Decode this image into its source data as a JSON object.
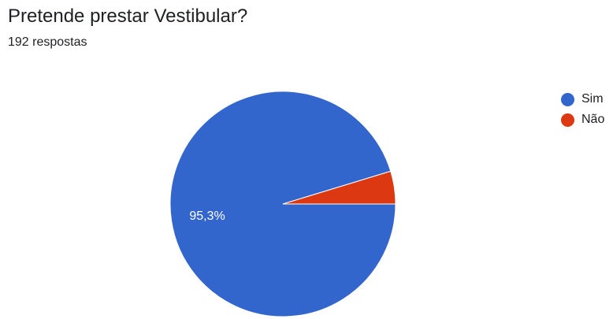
{
  "header": {
    "title": "Pretende prestar Vestibular?",
    "responses": "192 respostas"
  },
  "colors": {
    "sim": "#3366cc",
    "nao": "#dc3912",
    "slice_label": "#ffffff"
  },
  "chart_data": {
    "type": "pie",
    "title": "Pretende prestar Vestibular?",
    "categories": [
      "Sim",
      "Não"
    ],
    "values": [
      95.3,
      4.7
    ],
    "data_labels": [
      "95,3%",
      ""
    ],
    "legend_position": "right",
    "start_angle_deg": 90,
    "direction": "clockwise"
  }
}
